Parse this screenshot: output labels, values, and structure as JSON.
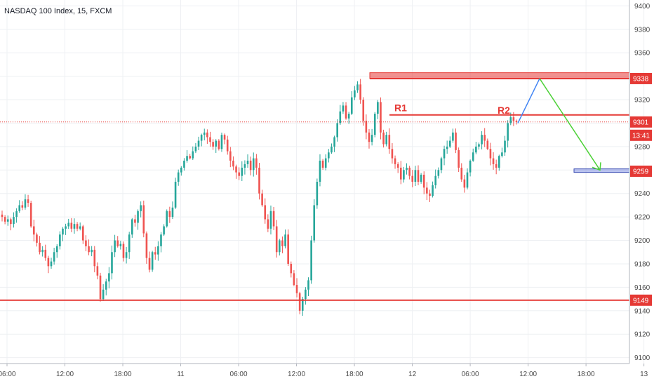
{
  "header": {
    "title": "NASDAQ 100 Index, 15, FXCM"
  },
  "chart_data": {
    "type": "candlestick",
    "title": "NASDAQ 100 Index, 15, FXCM",
    "y_ticks": [
      9100,
      9120,
      9140,
      9160,
      9180,
      9200,
      9220,
      9240,
      9260,
      9280,
      9300,
      9320,
      9340,
      9360,
      9380,
      9400
    ],
    "x_ticks": [
      "06:00",
      "12:00",
      "18:00",
      "11",
      "06:00",
      "12:00",
      "18:00",
      "12",
      "06:00",
      "12:00",
      "18:00",
      "13"
    ],
    "ylim": [
      9095,
      9405
    ],
    "price_tags": [
      {
        "label": "9338",
        "value": 9338,
        "color": "#e53935"
      },
      {
        "label": "9301",
        "value": 9301,
        "color": "#e53935"
      },
      {
        "label": "9259",
        "value": 9259,
        "color": "#e53935"
      },
      {
        "label": "9149",
        "value": 9149,
        "color": "#e53935"
      }
    ],
    "countdown": "13:41",
    "annotations": [
      {
        "label": "R1",
        "value": 9310
      },
      {
        "label": "R2",
        "value": 9308
      }
    ],
    "levels": {
      "resistance_zone": [
        9338,
        9343
      ],
      "r_line": 9307,
      "target_zone": [
        9258,
        9261
      ],
      "support_line": 9149,
      "last_price": 9301
    },
    "colors": {
      "up": "#26a69a",
      "down": "#ef5350",
      "level": "#e53935",
      "path_up": "#4285f4",
      "path_down": "#4cd137"
    },
    "closes": [
      9220,
      9216,
      9218,
      9214,
      9220,
      9225,
      9230,
      9228,
      9235,
      9232,
      9212,
      9205,
      9198,
      9190,
      9192,
      9185,
      9178,
      9182,
      9190,
      9195,
      9205,
      9210,
      9212,
      9215,
      9210,
      9214,
      9210,
      9212,
      9200,
      9195,
      9190,
      9192,
      9178,
      9170,
      9150,
      9158,
      9165,
      9172,
      9190,
      9200,
      9195,
      9197,
      9185,
      9190,
      9205,
      9218,
      9215,
      9225,
      9230,
      9206,
      9185,
      9175,
      9190,
      9188,
      9195,
      9205,
      9212,
      9225,
      9220,
      9228,
      9250,
      9258,
      9262,
      9268,
      9272,
      9270,
      9276,
      9280,
      9285,
      9290,
      9292,
      9288,
      9284,
      9280,
      9285,
      9278,
      9290,
      9286,
      9276,
      9268,
      9263,
      9258,
      9255,
      9262,
      9265,
      9268,
      9260,
      9270,
      9262,
      9240,
      9230,
      9218,
      9210,
      9225,
      9212,
      9190,
      9200,
      9195,
      9205,
      9180,
      9172,
      9162,
      9155,
      9140,
      9150,
      9158,
      9166,
      9200,
      9230,
      9250,
      9268,
      9262,
      9270,
      9275,
      9280,
      9288,
      9300,
      9310,
      9315,
      9304,
      9308,
      9322,
      9328,
      9333,
      9320,
      9302,
      9292,
      9284,
      9290,
      9308,
      9318,
      9292,
      9282,
      9290,
      9278,
      9270,
      9265,
      9262,
      9252,
      9260,
      9262,
      9255,
      9250,
      9260,
      9250,
      9256,
      9245,
      9240,
      9238,
      9247,
      9255,
      9260,
      9270,
      9278,
      9280,
      9285,
      9292,
      9277,
      9262,
      9252,
      9245,
      9258,
      9268,
      9275,
      9280,
      9282,
      9290,
      9285,
      9278,
      9270,
      9265,
      9262,
      9272,
      9275,
      9285,
      9300,
      9305,
      9302,
      9301
    ]
  }
}
